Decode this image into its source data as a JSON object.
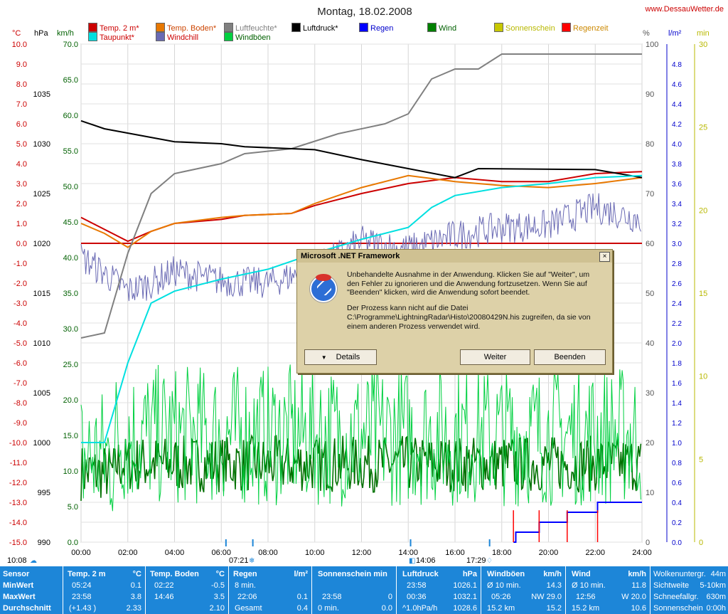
{
  "title": "Montag, 18.02.2008",
  "website": "www.DessauWetter.de",
  "units": {
    "temp": "°C",
    "hpa": "hPa",
    "kmh": "km/h",
    "pct": "%",
    "lm2": "l/m²",
    "min": "min"
  },
  "legend": [
    {
      "label": "Temp. 2 m*",
      "color": "#cc0000"
    },
    {
      "label": "Temp. Boden*",
      "color": "#e87800"
    },
    {
      "label": "Luftfeuchte*",
      "color": "#808080"
    },
    {
      "label": "Luftdruck*",
      "color": "#000000"
    },
    {
      "label": "Regen",
      "color": "#0000ff"
    },
    {
      "label": "Wind",
      "color": "#008000"
    },
    {
      "label": "Sonnenschein",
      "color": "#c8c800"
    },
    {
      "label": "Regenzeit",
      "color": "#ff0000"
    },
    {
      "label": "Taupunkt*",
      "color": "#00e0e0"
    },
    {
      "label": "Windchill",
      "color": "#6a6ab4"
    },
    {
      "label": "Windböen",
      "color": "#00d040"
    }
  ],
  "chart_data": {
    "type": "line",
    "x": [
      "00:00",
      "02:00",
      "04:00",
      "06:00",
      "08:00",
      "10:00",
      "12:00",
      "14:00",
      "16:00",
      "18:00",
      "20:00",
      "22:00",
      "24:00"
    ],
    "axes": {
      "temp": {
        "min": -15.0,
        "max": 10.0,
        "ticks": [
          "10.0",
          "9.0",
          "8.0",
          "7.0",
          "6.0",
          "5.0",
          "4.0",
          "3.0",
          "2.0",
          "1.0",
          "0.0",
          "-1.0",
          "-2.0",
          "-3.0",
          "-4.0",
          "-5.0",
          "-6.0",
          "-7.0",
          "-8.0",
          "-9.0",
          "-10.0",
          "-11.0",
          "-12.0",
          "-13.0",
          "-14.0",
          "-15.0"
        ]
      },
      "hpa": {
        "min": 990,
        "max": 1040,
        "ticks": [
          "1035",
          "1030",
          "1025",
          "1020",
          "1015",
          "1010",
          "1005",
          "1000",
          "995",
          "990"
        ]
      },
      "kmh": {
        "min": 0,
        "max": 70,
        "ticks": [
          "70.0",
          "65.0",
          "60.0",
          "55.0",
          "50.0",
          "45.0",
          "40.0",
          "35.0",
          "30.0",
          "25.0",
          "20.0",
          "15.0",
          "10.0",
          "5.0",
          "0.0"
        ]
      },
      "pct": {
        "min": 0,
        "max": 100,
        "ticks": [
          "100",
          "90",
          "80",
          "70",
          "60",
          "50",
          "40",
          "30",
          "20",
          "10",
          "0"
        ]
      },
      "lm2": {
        "min": 0,
        "max": 5,
        "ticks": [
          "4.8",
          "4.6",
          "4.4",
          "4.2",
          "4.0",
          "3.8",
          "3.6",
          "3.4",
          "3.2",
          "3.0",
          "2.8",
          "2.6",
          "2.4",
          "2.2",
          "2.0",
          "1.8",
          "1.6",
          "1.4",
          "1.2",
          "1.0",
          "0.8",
          "0.6",
          "0.4",
          "0.2",
          "0.0"
        ]
      },
      "min": {
        "min": 0,
        "max": 30,
        "ticks": [
          "30",
          "25",
          "20",
          "15",
          "10",
          "5",
          "0"
        ]
      }
    },
    "series": [
      {
        "name": "Temp. 2 m*",
        "axis": "temp",
        "color": "#cc0000",
        "points": [
          [
            0,
            1.3
          ],
          [
            1,
            0.7
          ],
          [
            2,
            0.1
          ],
          [
            3,
            0.6
          ],
          [
            4,
            1.0
          ],
          [
            6,
            1.2
          ],
          [
            7,
            1.4
          ],
          [
            9,
            1.5
          ],
          [
            10,
            1.9
          ],
          [
            12,
            2.5
          ],
          [
            14,
            3.0
          ],
          [
            16,
            3.3
          ],
          [
            18,
            3.1
          ],
          [
            20,
            3.1
          ],
          [
            22,
            3.5
          ],
          [
            24,
            3.6
          ]
        ]
      },
      {
        "name": "Temp. Boden*",
        "axis": "temp",
        "color": "#e87800",
        "points": [
          [
            0,
            1.0
          ],
          [
            1,
            0.5
          ],
          [
            2,
            -0.2
          ],
          [
            3,
            0.6
          ],
          [
            4,
            1.0
          ],
          [
            6,
            1.3
          ],
          [
            7,
            1.4
          ],
          [
            9,
            1.5
          ],
          [
            10,
            2.0
          ],
          [
            12,
            2.8
          ],
          [
            14,
            3.4
          ],
          [
            16,
            3.1
          ],
          [
            18,
            2.9
          ],
          [
            20,
            2.8
          ],
          [
            22,
            3.0
          ],
          [
            24,
            3.3
          ]
        ]
      },
      {
        "name": "Luftfeuchte*",
        "axis": "pct",
        "color": "#808080",
        "points": [
          [
            0,
            41
          ],
          [
            1,
            42
          ],
          [
            2,
            58
          ],
          [
            3,
            70
          ],
          [
            4,
            74
          ],
          [
            6,
            76
          ],
          [
            7,
            78
          ],
          [
            9,
            79
          ],
          [
            11,
            82
          ],
          [
            13,
            84
          ],
          [
            14,
            86
          ],
          [
            15,
            93
          ],
          [
            16,
            95
          ],
          [
            17,
            95
          ],
          [
            18,
            98
          ],
          [
            24,
            98
          ]
        ]
      },
      {
        "name": "Luftdruck*",
        "axis": "hpa",
        "color": "#000000",
        "points": [
          [
            0,
            1032.3
          ],
          [
            1,
            1031.5
          ],
          [
            4,
            1030.2
          ],
          [
            6,
            1030.0
          ],
          [
            7,
            1029.7
          ],
          [
            10,
            1029.4
          ],
          [
            12,
            1028.4
          ],
          [
            14,
            1027.5
          ],
          [
            16,
            1026.6
          ],
          [
            17,
            1027.5
          ],
          [
            22,
            1027.4
          ],
          [
            24,
            1026.6
          ]
        ]
      },
      {
        "name": "Taupunkt*",
        "axis": "temp",
        "color": "#00e0e0",
        "points": [
          [
            0,
            -10.0
          ],
          [
            1,
            -10.0
          ],
          [
            2,
            -6.0
          ],
          [
            3,
            -3.0
          ],
          [
            4,
            -2.4
          ],
          [
            6,
            -1.8
          ],
          [
            8,
            -1.3
          ],
          [
            10,
            -0.5
          ],
          [
            12,
            0.2
          ],
          [
            14,
            0.8
          ],
          [
            15,
            1.8
          ],
          [
            16,
            2.4
          ],
          [
            18,
            2.8
          ],
          [
            20,
            3.0
          ],
          [
            22,
            3.3
          ],
          [
            24,
            3.4
          ]
        ]
      },
      {
        "name": "Windchill",
        "axis": "temp",
        "color": "#6a6ab4",
        "points": [
          [
            0,
            -0.7
          ],
          [
            1,
            -1.5
          ],
          [
            2,
            -2.4
          ],
          [
            3,
            -2.0
          ],
          [
            4,
            -1.4
          ],
          [
            6,
            -1.9
          ],
          [
            8,
            -2.0
          ],
          [
            10,
            -1.3
          ],
          [
            12,
            0.1
          ],
          [
            14,
            -0.3
          ],
          [
            16,
            0.4
          ],
          [
            18,
            0.8
          ],
          [
            20,
            0.9
          ],
          [
            22,
            1.8
          ],
          [
            24,
            1.2
          ]
        ]
      },
      {
        "name": "Wind",
        "axis": "kmh",
        "color": "#007000",
        "mean": 11.0,
        "spread": 4
      },
      {
        "name": "Windböen",
        "axis": "kmh",
        "color": "#00d040",
        "mean": 15.0,
        "spread": 10
      },
      {
        "name": "Regen",
        "axis": "lm2",
        "color": "#0000ff",
        "points": [
          [
            18.5,
            0.0
          ],
          [
            18.6,
            0.1
          ],
          [
            19.6,
            0.2
          ],
          [
            20.8,
            0.3
          ],
          [
            22.1,
            0.4
          ],
          [
            24,
            0.4
          ]
        ]
      }
    ],
    "rain_periods": [
      18.5,
      19.6,
      20.8,
      22.1
    ],
    "grid": true
  },
  "dialog": {
    "title": "Microsoft .NET Framework",
    "close": "×",
    "message1": "Unbehandelte Ausnahme in der Anwendung. Klicken Sie auf \"Weiter\", um den Fehler zu ignorieren und die Anwendung fortzusetzen. Wenn Sie auf \"Beenden\" klicken, wird die Anwendung sofort beendet.",
    "message2": "Der Prozess kann nicht auf die Datei C:\\Programme\\LightningRadar\\Histo\\20080429N.his zugreifen, da sie von einem anderen Prozess verwendet wird.",
    "details": "Details",
    "continue": "Weiter",
    "quit": "Beenden"
  },
  "time_markers": {
    "sunrise": "07:21",
    "sunset": "17:29",
    "moonrise": "10:08",
    "moonset": "14:06"
  },
  "table": {
    "row_labels": [
      "Sensor",
      "MinWert",
      "MaxWert",
      "Durchschnitt"
    ],
    "temp2m": {
      "head": "Temp. 2 m",
      "unit": "°C",
      "min_time": "05:24",
      "min": "0.1",
      "max_time": "23:58",
      "max": "3.8",
      "avg_note": "(+1.43 )",
      "avg": "2.33"
    },
    "tempboden": {
      "head": "Temp. Boden",
      "unit": "°C",
      "min_time": "02:22",
      "min": "-0.5",
      "max_time": "14:46",
      "max": "3.5",
      "avg": "2.10"
    },
    "regen": {
      "head": "Regen",
      "unit": "l/m²",
      "r1": "8 min.",
      "r2_time": "22:06",
      "r2": "0.1",
      "r3": "Gesamt",
      "r3v": "0.4"
    },
    "sonne": {
      "head": "Sonnenschein min",
      "r2_time": "23:58",
      "r2": "0",
      "r3": "0 min.",
      "r3v": "0.0"
    },
    "luftdruck": {
      "head": "Luftdruck",
      "unit": "hPa",
      "min_time": "23:58",
      "min": "1026.1",
      "max_time": "00:36",
      "max": "1032.1",
      "avg_note": "^1.0hPa/h",
      "avg": "1028.6"
    },
    "boeen": {
      "head": "Windböen",
      "unit": "km/h",
      "r1": "Ø 10 min.",
      "r1v": "14.3",
      "r2_time": "05:26",
      "r2": "NW 29.0",
      "r3": "15.2 km",
      "r3v": "15.2"
    },
    "wind": {
      "head": "Wind",
      "unit": "km/h",
      "r1": "Ø 10 min.",
      "r1v": "11.8",
      "r2_time": "12:56",
      "r2": "W 20.0",
      "r3": "15.2 km",
      "r3v": "10.6"
    },
    "extra": [
      [
        "Wolkenuntergr.",
        "44m"
      ],
      [
        "Sichtweite",
        "5-10km"
      ],
      [
        "Schneefallgr.",
        "630m"
      ],
      [
        "Sonnenschein",
        "0:00h"
      ]
    ]
  }
}
